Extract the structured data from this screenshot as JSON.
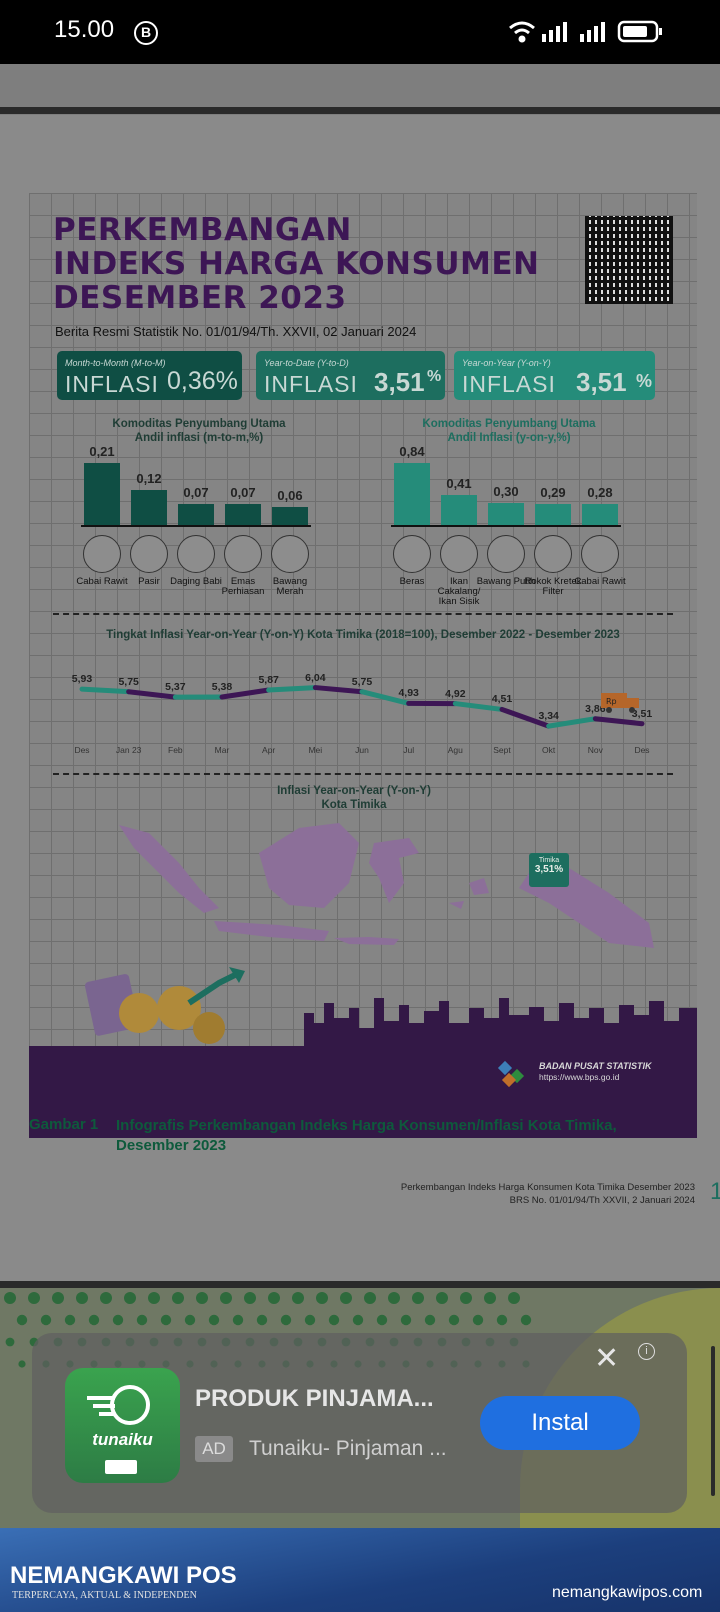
{
  "status_bar": {
    "time": "15.00",
    "b_badge": "B",
    "battery_level": 0.8
  },
  "infographic": {
    "title_lines": [
      "PERKEMBANGAN",
      "INDEKS HARGA KONSUMEN",
      "DESEMBER 2023"
    ],
    "subtitle": "Berita Resmi Statistik No. 01/01/94/Th. XXVII, 02 Januari 2024",
    "boxes": [
      {
        "label": "Month-to-Month (M-to-M)",
        "word": "INFLASI",
        "value": "0,36%",
        "color": "#0f4e44"
      },
      {
        "label": "Year-to-Date (Y-to-D)",
        "word": "INFLASI",
        "value": "3,51",
        "unit": "%",
        "color": "#1d6e5f"
      },
      {
        "label": "Year-on-Year (Y-on-Y)",
        "word": "INFLASI",
        "value": "3,51",
        "unit": "%",
        "color": "#258c7a"
      }
    ],
    "mtm": {
      "title": "Komoditas Penyumbang Utama",
      "subtitle": "Andil inflasi (m-to-m,%)",
      "items": [
        {
          "label": "Cabai Rawit",
          "value": "0,21",
          "icon": "chili-icon"
        },
        {
          "label": "Pasir",
          "value": "0,12",
          "icon": "sand-icon"
        },
        {
          "label": "Daging Babi",
          "value": "0,07",
          "icon": "pig-icon"
        },
        {
          "label": "Emas Perhiasan",
          "value": "0,07",
          "icon": "ring-icon"
        },
        {
          "label": "Bawang Merah",
          "value": "0,06",
          "icon": "onion-icon"
        }
      ]
    },
    "yoy": {
      "title": "Komoditas Penyumbang Utama",
      "subtitle": "Andil Inflasi (y-on-y,%)",
      "items": [
        {
          "label": "Beras",
          "value": "0,84",
          "icon": "rice-icon"
        },
        {
          "label": "Ikan Cakalang/ Ikan Sisik",
          "value": "0,41",
          "icon": "fish-icon"
        },
        {
          "label": "Bawang Putih",
          "value": "0,30",
          "icon": "garlic-icon"
        },
        {
          "label": "Rokok Kretek Filter",
          "value": "0,29",
          "icon": "cigarette-icon"
        },
        {
          "label": "Cabai Rawit",
          "value": "0,28",
          "icon": "chili-icon"
        }
      ]
    },
    "line_title": "Tingkat Inflasi Year-on-Year (Y-on-Y) Kota Timika (2018=100), Desember 2022 - Desember 2023",
    "line": {
      "months": [
        "Des",
        "Jan 23",
        "Feb",
        "Mar",
        "Apr",
        "Mei",
        "Jun",
        "Jul",
        "Agu",
        "Sept",
        "Okt",
        "Nov",
        "Des"
      ],
      "values": [
        5.93,
        5.75,
        5.37,
        5.38,
        5.87,
        6.04,
        5.75,
        4.93,
        4.92,
        4.51,
        3.34,
        3.86,
        3.51
      ],
      "labels": [
        "5,93",
        "5,75",
        "5,37",
        "5,38",
        "5,87",
        "6,04",
        "5,75",
        "4,93",
        "4,92",
        "4,51",
        "3,34",
        "3,86",
        "3,51"
      ],
      "colors": [
        "#258c7a",
        "#3d1655"
      ]
    },
    "map_title_1": "Inflasi Year-on-Year (Y-on-Y)",
    "map_title_2": "Kota Timika",
    "map_tag_city": "Timika",
    "map_tag_value": "3,51%",
    "bps_name": "BADAN PUSAT STATISTIK",
    "bps_url": "https://www.bps.go.id"
  },
  "caption": {
    "number": "Gambar 1",
    "text": "Infografis Perkembangan Indeks Harga Konsumen/Inflasi Kota Timika, Desember 2023"
  },
  "footer": {
    "line1": "Perkembangan Indeks Harga Konsumen Kota Timika Desember 2023",
    "line2": "BRS No. 01/01/94/Th XXVII, 2 Januari 2024",
    "page": "1"
  },
  "ad": {
    "app_name": "tunaiku",
    "title": "PRODUK PINJAMA...",
    "badge": "AD",
    "subtitle": "Tunaiku- Pinjaman ...",
    "button": "Instal",
    "close": "✕",
    "info": "i"
  },
  "brand": {
    "name": "NEMANGKAWI POS",
    "tagline": "TERPERCAYA, AKTUAL & INDEPENDEN",
    "url": "nemangkawipos.com"
  }
}
